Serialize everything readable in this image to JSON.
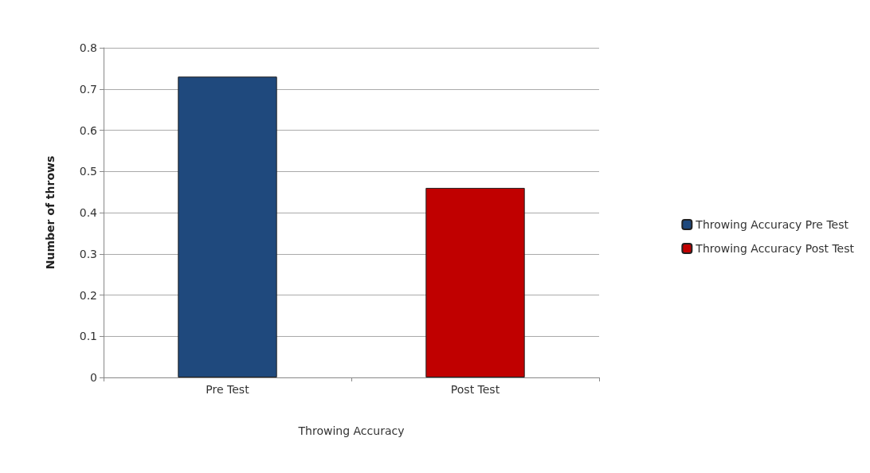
{
  "chart_data": {
    "type": "bar",
    "xlabel": "Throwing Accuracy",
    "ylabel": "Number of throws",
    "categories": [
      "Pre Test",
      "Post Test"
    ],
    "series": [
      {
        "name": "Throwing Accuracy Pre Test",
        "color": "#1f497d",
        "values": [
          0.73,
          null
        ]
      },
      {
        "name": "Throwing Accuracy Post Test",
        "color": "#c00000",
        "values": [
          null,
          0.46
        ]
      }
    ],
    "ylim": [
      0,
      0.8
    ],
    "yticks": [
      0,
      0.1,
      0.2,
      0.3,
      0.4,
      0.5,
      0.6,
      0.7,
      0.8
    ],
    "grid": "y",
    "legend": "right"
  }
}
